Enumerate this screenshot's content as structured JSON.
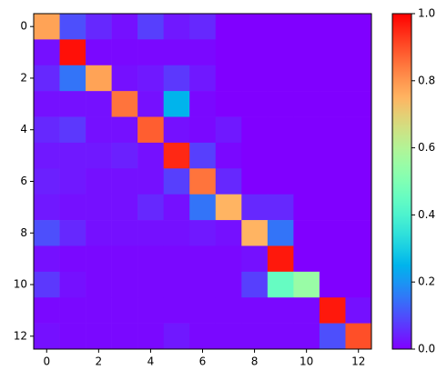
{
  "chart_data": {
    "type": "heatmap",
    "colormap": "rainbow",
    "z": [
      [
        0.78,
        0.1,
        0.05,
        0.02,
        0.08,
        0.03,
        0.05,
        0,
        0,
        0,
        0,
        0,
        0
      ],
      [
        0.02,
        0.98,
        0.01,
        0.01,
        0.01,
        0.01,
        0.01,
        0,
        0,
        0,
        0,
        0,
        0
      ],
      [
        0.05,
        0.15,
        0.78,
        0.02,
        0.03,
        0.07,
        0.03,
        0,
        0,
        0,
        0,
        0,
        0
      ],
      [
        0.02,
        0.02,
        0.02,
        0.85,
        0.02,
        0.25,
        0.01,
        0,
        0,
        0,
        0,
        0,
        0
      ],
      [
        0.05,
        0.07,
        0.02,
        0.02,
        0.88,
        0.02,
        0.01,
        0.03,
        0,
        0,
        0,
        0,
        0
      ],
      [
        0.03,
        0.03,
        0.03,
        0.04,
        0.02,
        0.95,
        0.08,
        0.01,
        0,
        0,
        0,
        0,
        0
      ],
      [
        0.04,
        0.03,
        0.02,
        0.02,
        0.02,
        0.08,
        0.85,
        0.05,
        0,
        0,
        0,
        0,
        0
      ],
      [
        0.03,
        0.02,
        0.02,
        0.02,
        0.05,
        0.02,
        0.15,
        0.75,
        0.05,
        0.05,
        0,
        0,
        0
      ],
      [
        0.1,
        0.05,
        0.02,
        0.02,
        0.02,
        0.02,
        0.03,
        0.02,
        0.75,
        0.15,
        0,
        0,
        0
      ],
      [
        0.02,
        0.01,
        0.01,
        0.01,
        0.01,
        0.01,
        0.01,
        0.01,
        0.02,
        0.97,
        0,
        0,
        0
      ],
      [
        0.07,
        0.02,
        0.01,
        0.01,
        0.01,
        0.01,
        0.01,
        0.01,
        0.08,
        0.45,
        0.55,
        0,
        0
      ],
      [
        0.01,
        0.01,
        0.01,
        0.01,
        0.01,
        0.01,
        0.01,
        0.01,
        0.01,
        0.01,
        0.01,
        0.97,
        0.02
      ],
      [
        0.02,
        0.01,
        0.01,
        0.01,
        0.01,
        0.03,
        0.01,
        0.01,
        0.01,
        0.01,
        0.01,
        0.1,
        0.9
      ]
    ],
    "xlim": [
      -0.5,
      12.5
    ],
    "ylim": [
      12.5,
      -0.5
    ],
    "xticks": [
      0,
      2,
      4,
      6,
      8,
      10,
      12
    ],
    "yticks": [
      0,
      2,
      4,
      6,
      8,
      10,
      12
    ],
    "clim": [
      0,
      1
    ],
    "cticks": [
      {
        "value": 0,
        "label": "0.0"
      },
      {
        "value": 0.2,
        "label": "0.2"
      },
      {
        "value": 0.4,
        "label": "0.4"
      },
      {
        "value": 0.6,
        "label": "0.6"
      },
      {
        "value": 0.8,
        "label": "0.8"
      },
      {
        "value": 1,
        "label": "1.0"
      }
    ]
  }
}
